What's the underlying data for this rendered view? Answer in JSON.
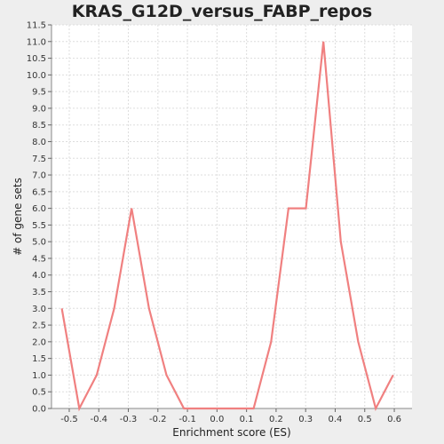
{
  "chart_data": {
    "type": "line",
    "title": "KRAS_G12D_versus_FABP_repos",
    "xlabel": "Enrichment score (ES)",
    "ylabel": "# of gene sets",
    "xlim": [
      -0.56,
      0.66
    ],
    "ylim": [
      0,
      11.5
    ],
    "x_ticks": [
      "-0.5",
      "-0.4",
      "-0.3",
      "-0.2",
      "-0.1",
      "0.0",
      "0.1",
      "0.2",
      "0.3",
      "0.4",
      "0.5",
      "0.6"
    ],
    "y_ticks": [
      "0.0",
      "0.5",
      "1.0",
      "1.5",
      "2.0",
      "2.5",
      "3.0",
      "3.5",
      "4.0",
      "4.5",
      "5.0",
      "5.5",
      "6.0",
      "6.5",
      "7.0",
      "7.5",
      "8.0",
      "8.5",
      "9.0",
      "9.5",
      "10.0",
      "10.5",
      "11.0",
      "11.5"
    ],
    "grid": true,
    "legend": "none",
    "series": [
      {
        "color": "#f08080",
        "x": [
          -0.525,
          -0.466,
          -0.407,
          -0.348,
          -0.289,
          -0.23,
          -0.171,
          -0.112,
          -0.053,
          0.006,
          0.065,
          0.124,
          0.183,
          0.242,
          0.301,
          0.36,
          0.419,
          0.478,
          0.537,
          0.596
        ],
        "y": [
          3,
          0,
          1,
          3,
          6,
          3,
          1,
          0,
          0,
          0,
          0,
          0,
          2,
          6,
          6,
          11,
          5,
          2,
          0,
          1
        ]
      }
    ]
  }
}
